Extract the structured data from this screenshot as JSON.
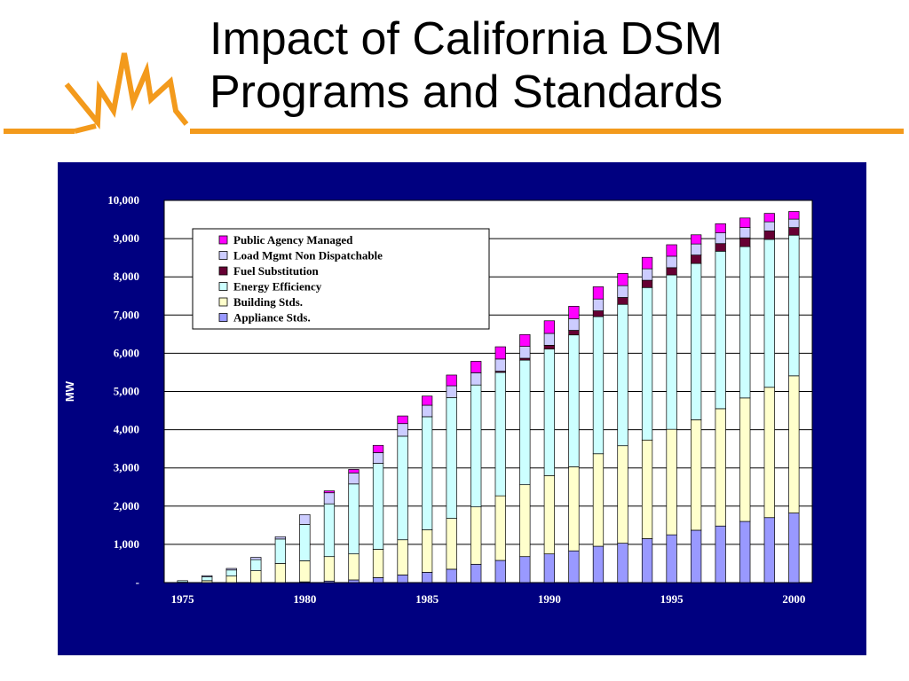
{
  "slide": {
    "title_line1": "Impact of California DSM",
    "title_line2": "Programs and Standards",
    "accent_color": "#f39a1c",
    "panel_color": "#000080",
    "logo_icon": "starburst-logo-icon"
  },
  "chart_data": {
    "type": "bar",
    "stacked": true,
    "title": "",
    "xlabel": "",
    "ylabel": "MW",
    "ylim": [
      0,
      10000
    ],
    "yticks": [
      "-",
      "1,000",
      "2,000",
      "3,000",
      "4,000",
      "5,000",
      "6,000",
      "7,000",
      "8,000",
      "9,000",
      "10,000"
    ],
    "xtick_labels": [
      "1975",
      "1980",
      "1985",
      "1990",
      "1995",
      "2000"
    ],
    "grid": true,
    "legend_position": "top-left",
    "categories": [
      1975,
      1976,
      1977,
      1978,
      1979,
      1980,
      1981,
      1982,
      1983,
      1984,
      1985,
      1986,
      1987,
      1988,
      1989,
      1990,
      1991,
      1992,
      1993,
      1994,
      1995,
      1996,
      1997,
      1998,
      1999,
      2000
    ],
    "series": [
      {
        "name": "Appliance Stds.",
        "color": "#9999ff",
        "values": [
          0,
          0,
          0,
          0,
          0,
          20,
          40,
          70,
          130,
          200,
          270,
          350,
          480,
          580,
          680,
          750,
          830,
          950,
          1030,
          1150,
          1250,
          1370,
          1480,
          1600,
          1700,
          1820
        ]
      },
      {
        "name": "Building Stds.",
        "color": "#ffffcc",
        "values": [
          10,
          50,
          170,
          310,
          500,
          550,
          640,
          680,
          740,
          920,
          1110,
          1330,
          1500,
          1690,
          1880,
          2050,
          2200,
          2420,
          2550,
          2580,
          2760,
          2890,
          3070,
          3230,
          3410,
          3590
        ]
      },
      {
        "name": "Energy Efficiency",
        "color": "#ccffff",
        "values": [
          40,
          100,
          160,
          290,
          640,
          950,
          1380,
          1830,
          2250,
          2710,
          2960,
          3160,
          3190,
          3230,
          3260,
          3310,
          3450,
          3590,
          3700,
          3990,
          4040,
          4090,
          4120,
          3960,
          3870,
          3680
        ]
      },
      {
        "name": "Fuel Substitution",
        "color": "#660033",
        "values": [
          0,
          0,
          0,
          0,
          0,
          0,
          0,
          0,
          0,
          0,
          0,
          0,
          0,
          30,
          50,
          100,
          120,
          150,
          180,
          190,
          190,
          220,
          200,
          230,
          220,
          200
        ]
      },
      {
        "name": "Load Mgmt Non Dispatchable",
        "color": "#ccccff",
        "values": [
          0,
          30,
          40,
          60,
          60,
          260,
          290,
          290,
          280,
          330,
          300,
          310,
          320,
          320,
          310,
          310,
          300,
          310,
          310,
          300,
          300,
          290,
          280,
          270,
          240,
          220
        ]
      },
      {
        "name": "Public Agency Managed",
        "color": "#ff00ff",
        "values": [
          0,
          0,
          0,
          0,
          0,
          0,
          50,
          90,
          190,
          200,
          240,
          280,
          300,
          320,
          310,
          330,
          330,
          320,
          320,
          300,
          300,
          240,
          240,
          250,
          220,
          200
        ]
      }
    ],
    "legend_order": [
      "Public Agency Managed",
      "Load Mgmt Non Dispatchable",
      "Fuel Substitution",
      "Energy Efficiency",
      "Building Stds.",
      "Appliance Stds."
    ]
  }
}
